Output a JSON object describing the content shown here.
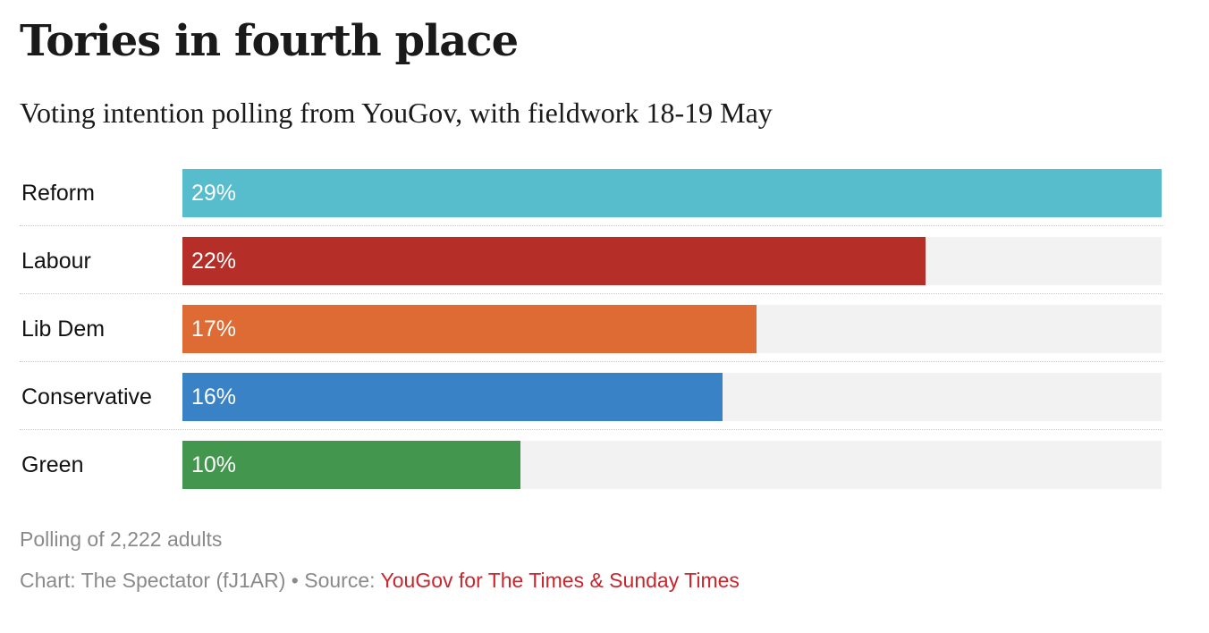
{
  "chart_data": {
    "type": "bar",
    "orientation": "horizontal",
    "title": "Tories in fourth place",
    "subtitle": "Voting intention polling from YouGov, with fieldwork 18-19 May",
    "categories": [
      "Reform",
      "Labour",
      "Lib Dem",
      "Conservative",
      "Green"
    ],
    "values": [
      29,
      22,
      17,
      16,
      10
    ],
    "value_labels": [
      "29%",
      "22%",
      "17%",
      "16%",
      "10%"
    ],
    "colors": [
      "#57bccc",
      "#b52e28",
      "#de6b33",
      "#3a82c6",
      "#43964d"
    ],
    "xlim": [
      0,
      29
    ],
    "unit": "%",
    "grid": false,
    "legend": "none"
  },
  "footer": {
    "note": "Polling of 2,222 adults",
    "credit": "Chart: The Spectator (fJ1AR) • Source: ",
    "source_link": "YouGov for The Times & Sunday Times",
    "link_color": "#c8252c"
  }
}
